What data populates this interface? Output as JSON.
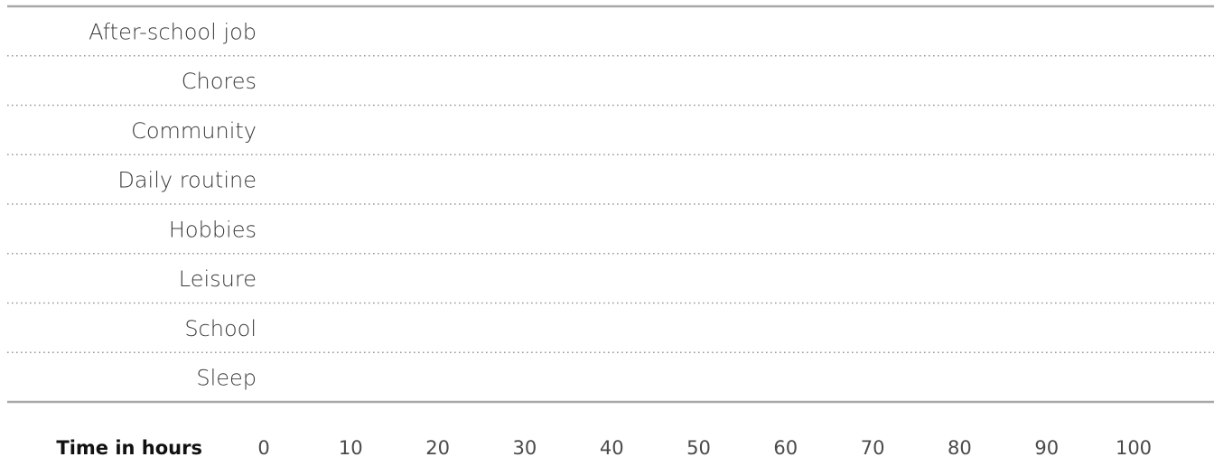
{
  "chart_data": {
    "type": "bar",
    "categories": [
      "After-school job",
      "Chores",
      "Community",
      "Daily routine",
      "Hobbies",
      "Leisure",
      "School",
      "Sleep"
    ],
    "values": [
      null,
      null,
      null,
      null,
      null,
      null,
      null,
      null
    ],
    "xlabel": "Time in hours",
    "xlim": [
      0,
      100
    ],
    "xticks": [
      0,
      10,
      20,
      30,
      40,
      50,
      60,
      70,
      80,
      90,
      100
    ],
    "grid": false,
    "orientation": "horizontal"
  }
}
